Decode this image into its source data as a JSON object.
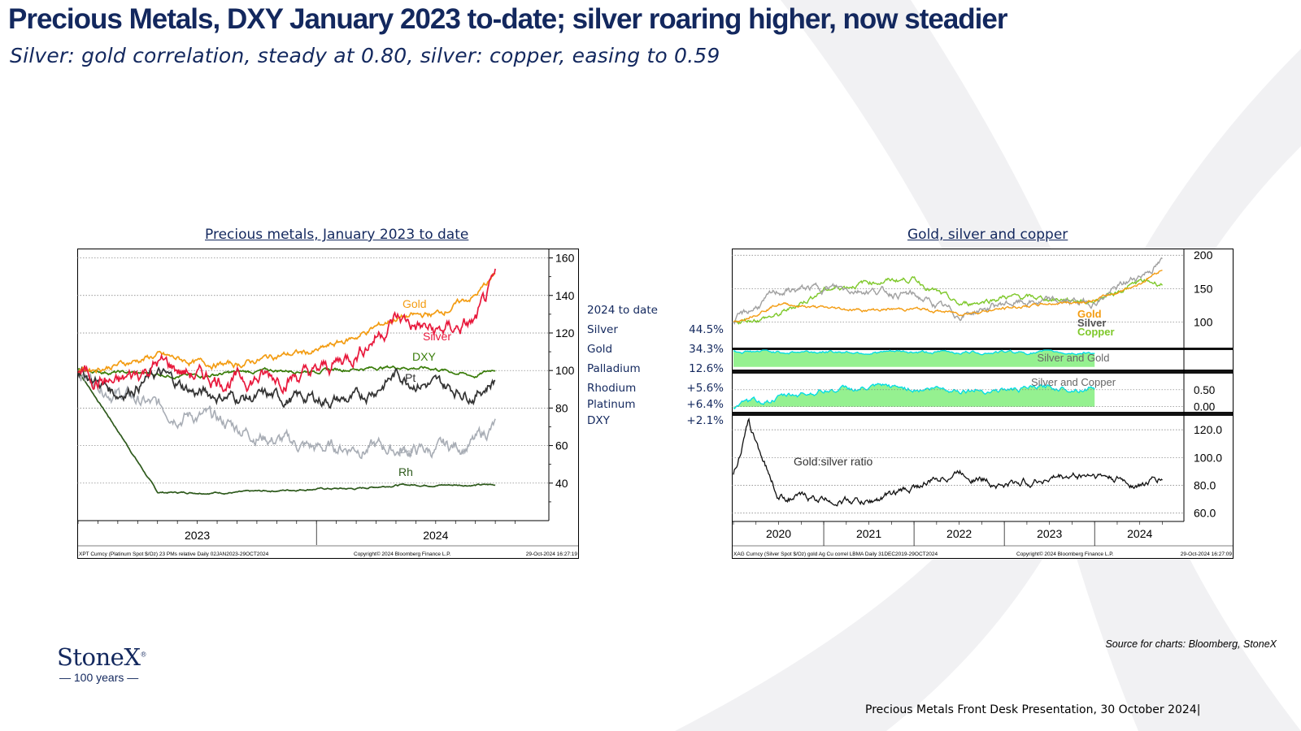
{
  "header": {
    "title": "Precious Metals, DXY January 2023 to-date; silver roaring higher, now steadier",
    "subtitle": "Silver: gold correlation, steady at 0.80, silver: copper, easing to 0.59"
  },
  "left_chart": {
    "title": "Precious metals, January 2023 to date",
    "footer_left": "XPT Curncy (Platinum Spot $/Oz) 23 PMs relative  Daily 02JAN2023-29OCT2024",
    "footer_mid": "Copyright© 2024 Bloomberg Finance L.P.",
    "footer_right": "29-Oct-2024 16:27:19"
  },
  "right_chart": {
    "title": "Gold, silver and copper",
    "footer_left": "XAG Curncy (Silver Spot $/Oz) gold Ag Cu correl LBMA  Daily 31DEC2019-29OCT2024",
    "footer_mid": "Copyright© 2024 Bloomberg Finance L.P.",
    "footer_right": "29-Oct-2024 16:27:09"
  },
  "legend": {
    "header": "2024 to date",
    "rows": [
      {
        "name": "Silver",
        "value": "44.5%"
      },
      {
        "name": "Gold",
        "value": "34.3%"
      },
      {
        "name": "Palladium",
        "value": "12.6%"
      },
      {
        "name": "Rhodium",
        "value": "+5.6%"
      },
      {
        "name": "Platinum",
        "value": "+6.4%"
      },
      {
        "name": "DXY",
        "value": "+2.1%"
      }
    ]
  },
  "source": "Source for charts: Bloomberg, StoneX",
  "footer": "Precious Metals Front Desk Presentation, 30 October 2024|",
  "logo": {
    "name": "StoneX",
    "mark": "®",
    "tagline": "— 100 years —"
  },
  "colors": {
    "navy": "#13285e",
    "gold": "#f39c12",
    "silver_left": "#e8193c",
    "dxy": "#3a7d0a",
    "pt": "#333333",
    "pd": "#a8adb5",
    "rh": "#2e5a1c",
    "copper": "#7ec82a",
    "cyan": "#00e0e8",
    "fill_green": "#7ef07a"
  },
  "chart_data": [
    {
      "type": "line",
      "x_ticks": [
        "2023",
        "2024"
      ],
      "ylim": [
        20,
        165
      ],
      "y_ticks": [
        "160",
        "140",
        "120",
        "100",
        "80",
        "60",
        "40"
      ],
      "series": [
        {
          "name": "Gold",
          "label": "Gold",
          "x": [
            "2023-01",
            "2023-03",
            "2023-05",
            "2023-07",
            "2023-09",
            "2023-11",
            "2024-01",
            "2024-03",
            "2024-05",
            "2024-07",
            "2024-09",
            "2024-10"
          ],
          "values": [
            100,
            103,
            108,
            104,
            103,
            108,
            110,
            118,
            128,
            130,
            140,
            151
          ]
        },
        {
          "name": "Silver",
          "label": "Silver",
          "x": [
            "2023-01",
            "2023-03",
            "2023-05",
            "2023-07",
            "2023-09",
            "2023-11",
            "2024-01",
            "2024-03",
            "2024-05",
            "2024-07",
            "2024-09",
            "2024-10"
          ],
          "values": [
            100,
            92,
            104,
            97,
            95,
            97,
            98,
            110,
            128,
            120,
            125,
            146
          ]
        },
        {
          "name": "DXY",
          "label": "DXY",
          "x": [
            "2023-01",
            "2023-03",
            "2023-05",
            "2023-07",
            "2023-09",
            "2023-11",
            "2024-01",
            "2024-03",
            "2024-05",
            "2024-07",
            "2024-09",
            "2024-10"
          ],
          "values": [
            100,
            99,
            98,
            97,
            99,
            100,
            100,
            101,
            102,
            101,
            97,
            101
          ]
        },
        {
          "name": "Pt",
          "label": "Pt",
          "x": [
            "2023-01",
            "2023-03",
            "2023-05",
            "2023-07",
            "2023-09",
            "2023-11",
            "2024-01",
            "2024-03",
            "2024-05",
            "2024-07",
            "2024-09",
            "2024-10"
          ],
          "values": [
            100,
            88,
            98,
            88,
            86,
            85,
            85,
            84,
            98,
            92,
            88,
            96
          ]
        },
        {
          "name": "Pd",
          "label": "Pd",
          "x": [
            "2023-01",
            "2023-03",
            "2023-05",
            "2023-07",
            "2023-09",
            "2023-11",
            "2024-01",
            "2024-03",
            "2024-05",
            "2024-07",
            "2024-09",
            "2024-10"
          ],
          "values": [
            100,
            88,
            80,
            76,
            70,
            63,
            58,
            60,
            58,
            57,
            62,
            71
          ]
        },
        {
          "name": "Rh",
          "label": "Rh",
          "x": [
            "2023-01",
            "2023-03",
            "2023-05",
            "2023-07",
            "2023-09",
            "2023-11",
            "2024-01",
            "2024-03",
            "2024-05",
            "2024-07",
            "2024-09",
            "2024-10"
          ],
          "values": [
            100,
            68,
            35,
            35,
            35,
            36,
            37,
            37,
            39,
            39,
            39,
            39
          ]
        }
      ]
    },
    {
      "type": "line",
      "panel": "prices",
      "x_ticks": [
        "2020",
        "2021",
        "2022",
        "2023",
        "2024"
      ],
      "y_ticks": [
        "200",
        "150",
        "100"
      ],
      "series": [
        {
          "name": "Gold",
          "label": "Gold",
          "x": [
            "2020-01",
            "2020-07",
            "2021-01",
            "2021-07",
            "2022-01",
            "2022-07",
            "2023-01",
            "2023-07",
            "2024-01",
            "2024-07",
            "2024-10"
          ],
          "values": [
            100,
            128,
            121,
            118,
            120,
            113,
            120,
            128,
            132,
            158,
            180
          ]
        },
        {
          "name": "Silver",
          "label": "Silver",
          "x": [
            "2020-01",
            "2020-07",
            "2021-01",
            "2021-07",
            "2022-01",
            "2022-07",
            "2023-01",
            "2023-07",
            "2024-01",
            "2024-07",
            "2024-10"
          ],
          "values": [
            100,
            145,
            152,
            148,
            140,
            110,
            128,
            130,
            130,
            170,
            190
          ]
        },
        {
          "name": "Copper",
          "label": "Copper",
          "x": [
            "2020-01",
            "2020-07",
            "2021-01",
            "2021-07",
            "2022-01",
            "2022-07",
            "2023-01",
            "2023-07",
            "2024-01",
            "2024-07",
            "2024-10"
          ],
          "values": [
            100,
            110,
            148,
            160,
            165,
            125,
            138,
            135,
            132,
            160,
            158
          ]
        }
      ]
    },
    {
      "type": "area",
      "panel": "correlation",
      "series": [
        {
          "name": "Silver and Gold",
          "label": "Silver and Gold",
          "x": [
            "2020",
            "2021",
            "2022",
            "2023",
            "2024"
          ],
          "values": [
            0.85,
            0.86,
            0.82,
            0.84,
            0.8
          ]
        },
        {
          "name": "Silver and Copper",
          "label": "Silver and Copper",
          "x": [
            "2020",
            "2021",
            "2022",
            "2023",
            "2024"
          ],
          "values": [
            0.0,
            0.5,
            0.55,
            0.5,
            0.59
          ]
        }
      ],
      "y_ticks": [
        "0.50",
        "0.00"
      ]
    },
    {
      "type": "line",
      "panel": "ratio",
      "series": [
        {
          "name": "Gold:silver ratio",
          "label": "Gold:silver ratio",
          "x": [
            "2020-01",
            "2020-03",
            "2020-07",
            "2021-01",
            "2021-07",
            "2022-01",
            "2022-07",
            "2023-01",
            "2023-07",
            "2024-01",
            "2024-07",
            "2024-10"
          ],
          "values": [
            87,
            124,
            72,
            70,
            68,
            78,
            90,
            80,
            85,
            88,
            80,
            85
          ]
        }
      ],
      "y_ticks": [
        "120.0",
        "100.0",
        "80.0",
        "60.0"
      ]
    }
  ]
}
